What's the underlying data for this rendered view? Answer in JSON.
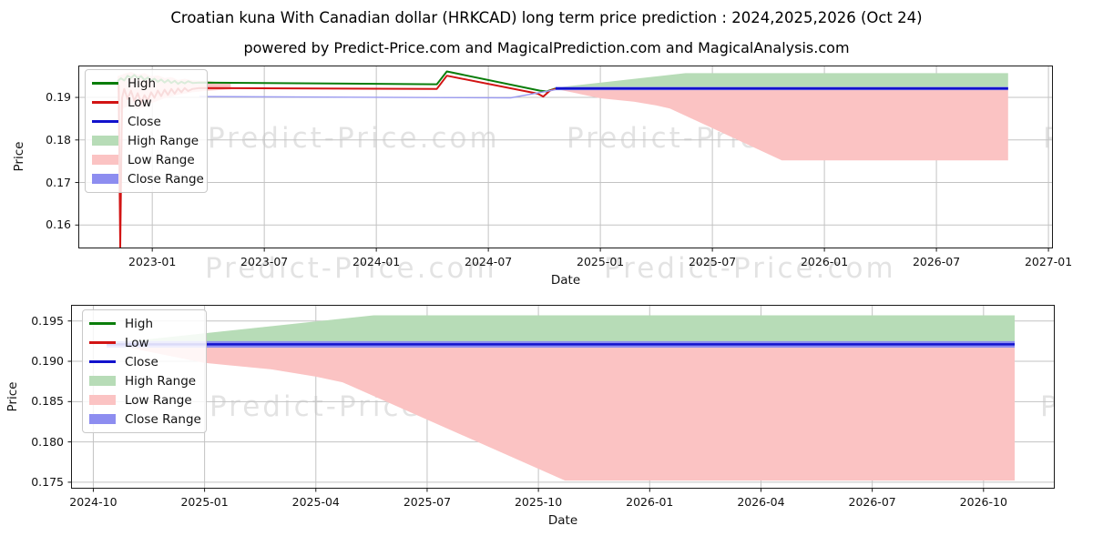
{
  "page": {
    "title": "Croatian kuna With Canadian dollar (HRKCAD) long term price prediction : 2024,2025,2026 (Oct 24)",
    "subtitle": "powered by Predict-Price.com and MagicalPrediction.com and MagicalAnalysis.com"
  },
  "watermark": {
    "text": "Predict-Price.com"
  },
  "colors": {
    "high_line": "#0a7d0a",
    "low_line": "#d21414",
    "close_line": "#1212cc",
    "high_range_fill": "#b7dcb7",
    "low_range_fill": "#fbc3c3",
    "close_range_fill": "#8d8df0",
    "grid": "#c3c3c3",
    "spine": "#1a1a1a"
  },
  "chart_data": [
    {
      "name": "main-prediction-chart",
      "type": "area",
      "ylabel": "Price",
      "xlabel": "Date",
      "grid": true,
      "legend_position": "upper left",
      "xlim": [
        2022.67,
        2027.02
      ],
      "ylim": [
        0.1545,
        0.1975
      ],
      "xticks": {
        "values": [
          2023.0,
          2023.5,
          2024.0,
          2024.5,
          2025.0,
          2025.5,
          2026.0,
          2026.5,
          2027.0
        ],
        "labels": [
          "2023-01",
          "2023-07",
          "2024-01",
          "2024-07",
          "2025-01",
          "2025-07",
          "2026-01",
          "2026-07",
          "2027-01"
        ]
      },
      "yticks": {
        "values": [
          0.16,
          0.17,
          0.18,
          0.19
        ],
        "labels": [
          "0.16",
          "0.17",
          "0.18",
          "0.19"
        ]
      },
      "legend": [
        {
          "label": "High",
          "kind": "line",
          "color": "#0a7d0a"
        },
        {
          "label": "Low",
          "kind": "line",
          "color": "#d21414"
        },
        {
          "label": "Close",
          "kind": "line",
          "color": "#1212cc"
        },
        {
          "label": "High Range",
          "kind": "patch",
          "color": "#b7dcb7"
        },
        {
          "label": "Low Range",
          "kind": "patch",
          "color": "#fbc3c3"
        },
        {
          "label": "Close Range",
          "kind": "patch",
          "color": "#8d8df0"
        }
      ],
      "series": [
        {
          "name": "history-range-band",
          "kind": "band",
          "color": "#fbc3c3",
          "top": [
            [
              2022.845,
              0.195
            ],
            [
              2022.875,
              0.1956
            ],
            [
              2022.905,
              0.196
            ],
            [
              2022.935,
              0.1954
            ],
            [
              2022.965,
              0.1957
            ],
            [
              2022.995,
              0.195
            ],
            [
              2023.025,
              0.1952
            ],
            [
              2023.055,
              0.1946
            ],
            [
              2023.085,
              0.1948
            ],
            [
              2023.115,
              0.1941
            ],
            [
              2023.145,
              0.1944
            ],
            [
              2023.18,
              0.194
            ],
            [
              2023.25,
              0.1938
            ],
            [
              2023.35,
              0.1933
            ]
          ],
          "bottom": [
            [
              2022.845,
              0.1915
            ],
            [
              2022.857,
              0.1862
            ],
            [
              2022.875,
              0.1876
            ],
            [
              2022.905,
              0.188
            ],
            [
              2022.935,
              0.1872
            ],
            [
              2022.965,
              0.1878
            ],
            [
              2022.995,
              0.1886
            ],
            [
              2023.025,
              0.1892
            ],
            [
              2023.055,
              0.1898
            ],
            [
              2023.085,
              0.1902
            ],
            [
              2023.115,
              0.1906
            ],
            [
              2023.145,
              0.1909
            ],
            [
              2023.18,
              0.1912
            ],
            [
              2023.25,
              0.1916
            ],
            [
              2023.35,
              0.1919
            ]
          ]
        },
        {
          "name": "high-range-band",
          "kind": "band",
          "color": "#b7dcb7",
          "top": [
            [
              2024.8,
              0.1923
            ],
            [
              2025.38,
              0.1957
            ],
            [
              2026.82,
              0.1957
            ]
          ],
          "bottom": [
            [
              2024.8,
              0.1921
            ],
            [
              2026.82,
              0.1921
            ]
          ]
        },
        {
          "name": "low-range-band",
          "kind": "band",
          "color": "#fbc3c3",
          "top": [
            [
              2024.8,
              0.1921
            ],
            [
              2026.82,
              0.1921
            ]
          ],
          "bottom": [
            [
              2024.8,
              0.192
            ],
            [
              2025.0,
              0.1898
            ],
            [
              2025.15,
              0.189
            ],
            [
              2025.25,
              0.1881
            ],
            [
              2025.31,
              0.1874
            ],
            [
              2025.81,
              0.1752
            ],
            [
              2026.82,
              0.1752
            ]
          ]
        },
        {
          "name": "close-range-band",
          "kind": "band",
          "color": "#8d8df0",
          "top": [
            [
              2024.8,
              0.1925
            ],
            [
              2026.82,
              0.1925
            ]
          ],
          "bottom": [
            [
              2024.8,
              0.1917
            ],
            [
              2026.82,
              0.1917
            ]
          ]
        },
        {
          "name": "high-line",
          "kind": "line",
          "color": "#0a7d0a",
          "width": 2,
          "points": [
            [
              2022.845,
              0.1938
            ],
            [
              2022.86,
              0.1945
            ],
            [
              2022.875,
              0.194
            ],
            [
              2022.89,
              0.1951
            ],
            [
              2022.905,
              0.1946
            ],
            [
              2022.92,
              0.1953
            ],
            [
              2022.935,
              0.1945
            ],
            [
              2022.95,
              0.195
            ],
            [
              2022.965,
              0.1941
            ],
            [
              2022.98,
              0.1947
            ],
            [
              2022.995,
              0.194
            ],
            [
              2023.01,
              0.1944
            ],
            [
              2023.025,
              0.1937
            ],
            [
              2023.04,
              0.1942
            ],
            [
              2023.055,
              0.1935
            ],
            [
              2023.07,
              0.1941
            ],
            [
              2023.085,
              0.1934
            ],
            [
              2023.1,
              0.1939
            ],
            [
              2023.115,
              0.1932
            ],
            [
              2023.13,
              0.1937
            ],
            [
              2023.145,
              0.1933
            ],
            [
              2023.16,
              0.1938
            ],
            [
              2023.18,
              0.1934
            ],
            [
              2023.21,
              0.1935
            ],
            [
              2024.27,
              0.1931
            ],
            [
              2024.315,
              0.1961
            ],
            [
              2024.73,
              0.1916
            ],
            [
              2024.76,
              0.1914
            ],
            [
              2024.8,
              0.1921
            ]
          ]
        },
        {
          "name": "low-line",
          "kind": "line",
          "color": "#d21414",
          "width": 2,
          "points": [
            [
              2022.845,
              0.1931
            ],
            [
              2022.85,
              0.1928
            ],
            [
              2022.857,
              0.1548
            ],
            [
              2022.865,
              0.1899
            ],
            [
              2022.875,
              0.192
            ],
            [
              2022.89,
              0.1896
            ],
            [
              2022.905,
              0.1916
            ],
            [
              2022.92,
              0.1892
            ],
            [
              2022.935,
              0.191
            ],
            [
              2022.95,
              0.1888
            ],
            [
              2022.965,
              0.1905
            ],
            [
              2022.98,
              0.1893
            ],
            [
              2022.995,
              0.1912
            ],
            [
              2023.01,
              0.1899
            ],
            [
              2023.025,
              0.1916
            ],
            [
              2023.04,
              0.1903
            ],
            [
              2023.055,
              0.1918
            ],
            [
              2023.07,
              0.1906
            ],
            [
              2023.085,
              0.192
            ],
            [
              2023.1,
              0.1909
            ],
            [
              2023.115,
              0.1921
            ],
            [
              2023.13,
              0.1912
            ],
            [
              2023.145,
              0.1922
            ],
            [
              2023.16,
              0.1915
            ],
            [
              2023.18,
              0.192
            ],
            [
              2023.21,
              0.1922
            ],
            [
              2024.27,
              0.192
            ],
            [
              2024.315,
              0.1951
            ],
            [
              2024.72,
              0.1909
            ],
            [
              2024.745,
              0.1902
            ],
            [
              2024.775,
              0.1916
            ],
            [
              2024.8,
              0.192
            ]
          ]
        },
        {
          "name": "history-close-line",
          "kind": "line",
          "color": "#9b9bf0",
          "width": 1.4,
          "points": [
            [
              2023.21,
              0.1902
            ],
            [
              2024.6,
              0.1899
            ],
            [
              2024.8,
              0.1918
            ]
          ]
        },
        {
          "name": "close-line",
          "kind": "line",
          "color": "#1212cc",
          "width": 2.5,
          "points": [
            [
              2024.8,
              0.1921
            ],
            [
              2026.82,
              0.1921
            ]
          ]
        }
      ]
    },
    {
      "name": "forecast-detail-chart",
      "type": "area",
      "ylabel": "Price",
      "xlabel": "Date",
      "grid": true,
      "legend_position": "upper left",
      "xlim": [
        2024.7,
        2026.91
      ],
      "ylim": [
        0.1742,
        0.197
      ],
      "xticks": {
        "values": [
          2024.75,
          2025.0,
          2025.25,
          2025.5,
          2025.75,
          2026.0,
          2026.25,
          2026.5,
          2026.75
        ],
        "labels": [
          "2024-10",
          "2025-01",
          "2025-04",
          "2025-07",
          "2025-10",
          "2026-01",
          "2026-04",
          "2026-07",
          "2026-10"
        ]
      },
      "yticks": {
        "values": [
          0.175,
          0.18,
          0.185,
          0.19,
          0.195
        ],
        "labels": [
          "0.175",
          "0.180",
          "0.185",
          "0.190",
          "0.195"
        ]
      },
      "legend": [
        {
          "label": "High",
          "kind": "line",
          "color": "#0a7d0a"
        },
        {
          "label": "Low",
          "kind": "line",
          "color": "#d21414"
        },
        {
          "label": "Close",
          "kind": "line",
          "color": "#1212cc"
        },
        {
          "label": "High Range",
          "kind": "patch",
          "color": "#b7dcb7"
        },
        {
          "label": "Low Range",
          "kind": "patch",
          "color": "#fbc3c3"
        },
        {
          "label": "Close Range",
          "kind": "patch",
          "color": "#8d8df0"
        }
      ],
      "series": [
        {
          "name": "high-range-band",
          "kind": "band",
          "color": "#b7dcb7",
          "top": [
            [
              2024.8,
              0.1923
            ],
            [
              2025.38,
              0.1957
            ],
            [
              2026.82,
              0.1957
            ]
          ],
          "bottom": [
            [
              2024.8,
              0.1921
            ],
            [
              2026.82,
              0.1921
            ]
          ]
        },
        {
          "name": "low-range-band",
          "kind": "band",
          "color": "#fbc3c3",
          "top": [
            [
              2024.8,
              0.1921
            ],
            [
              2026.82,
              0.1921
            ]
          ],
          "bottom": [
            [
              2024.8,
              0.192
            ],
            [
              2025.0,
              0.1898
            ],
            [
              2025.15,
              0.189
            ],
            [
              2025.25,
              0.1881
            ],
            [
              2025.31,
              0.1874
            ],
            [
              2025.81,
              0.1752
            ],
            [
              2026.82,
              0.1752
            ]
          ]
        },
        {
          "name": "close-range-band",
          "kind": "band",
          "color": "#8d8df0",
          "top": [
            [
              2024.78,
              0.1925
            ],
            [
              2026.82,
              0.1925
            ]
          ],
          "bottom": [
            [
              2024.78,
              0.1917
            ],
            [
              2026.82,
              0.1917
            ]
          ]
        },
        {
          "name": "close-line",
          "kind": "line",
          "color": "#1212cc",
          "width": 2.5,
          "points": [
            [
              2024.78,
              0.1921
            ],
            [
              2026.82,
              0.1921
            ]
          ]
        }
      ]
    }
  ]
}
